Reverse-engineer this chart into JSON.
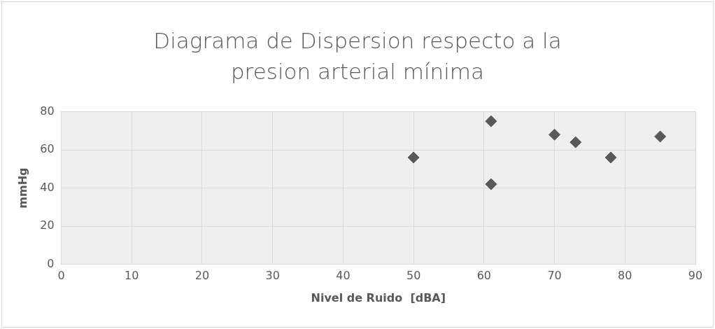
{
  "chart_data": {
    "type": "scatter",
    "title": "Diagrama de Dispersion respecto a la presion arterial mínima",
    "xlabel": "Nivel de Ruido  [dBA]",
    "ylabel": "mmHg",
    "x": [
      50,
      61,
      61,
      70,
      73,
      78,
      85
    ],
    "series": [
      {
        "color": "#595959",
        "values": [
          56,
          75,
          42,
          68,
          64,
          56,
          67
        ]
      }
    ],
    "xlim": [
      0,
      90
    ],
    "xticks": [
      0,
      10,
      20,
      30,
      40,
      50,
      60,
      70,
      80,
      90
    ],
    "ylim": [
      0,
      80
    ],
    "yticks": [
      0,
      20,
      40,
      60,
      80
    ],
    "grid": true,
    "legend": false,
    "marker": "diamond"
  }
}
